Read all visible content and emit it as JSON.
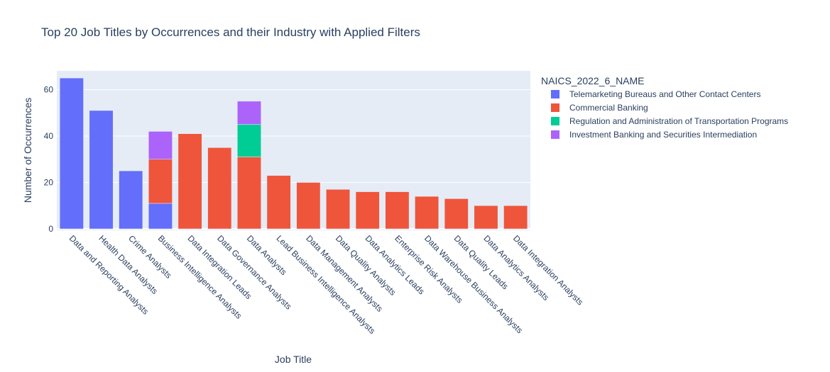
{
  "chart_data": {
    "type": "bar",
    "barmode": "stack",
    "title": "Top 20 Job Titles by Occurrences and their Industry with Applied Filters",
    "xlabel": "Job Title",
    "ylabel": "Number of Occurrences",
    "ylim": [
      0,
      68
    ],
    "yticks": [
      0,
      20,
      40,
      60
    ],
    "grid": true,
    "legend_title": "NAICS_2022_6_NAME",
    "legend_position": "right",
    "categories": [
      "Data and Reporting Analysts",
      "Health Data Analysts",
      "Crime Analysts",
      "Business Intelligence Analysts",
      "Data Integration Leads",
      "Data Governance Analysts",
      "Data Analysts",
      "Lead Business Intelligence Analysts",
      "Data Management Analysts",
      "Data Quality Analysts",
      "Data Analytics Leads",
      "Enterprise Risk Analysts",
      "Data Warehouse Business Analysts",
      "Data Quality Leads",
      "Data Analytics Analysts",
      "Data Integration Analysts"
    ],
    "series": [
      {
        "name": "Telemarketing Bureaus and Other Contact Centers",
        "color": "#636efa",
        "values": [
          65,
          51,
          25,
          11,
          0,
          0,
          0,
          0,
          0,
          0,
          0,
          0,
          0,
          0,
          0,
          0
        ]
      },
      {
        "name": "Commercial Banking",
        "color": "#ef553b",
        "values": [
          0,
          0,
          0,
          19,
          41,
          35,
          31,
          23,
          20,
          17,
          16,
          16,
          14,
          13,
          10,
          10
        ]
      },
      {
        "name": "Regulation and Administration of Transportation Programs",
        "color": "#00cc96",
        "values": [
          0,
          0,
          0,
          0,
          0,
          0,
          14,
          0,
          0,
          0,
          0,
          0,
          0,
          0,
          0,
          0
        ]
      },
      {
        "name": "Investment Banking and Securities Intermediation",
        "color": "#ab63fa",
        "values": [
          0,
          0,
          0,
          12,
          0,
          0,
          10,
          0,
          0,
          0,
          0,
          0,
          0,
          0,
          0,
          0
        ]
      }
    ]
  }
}
